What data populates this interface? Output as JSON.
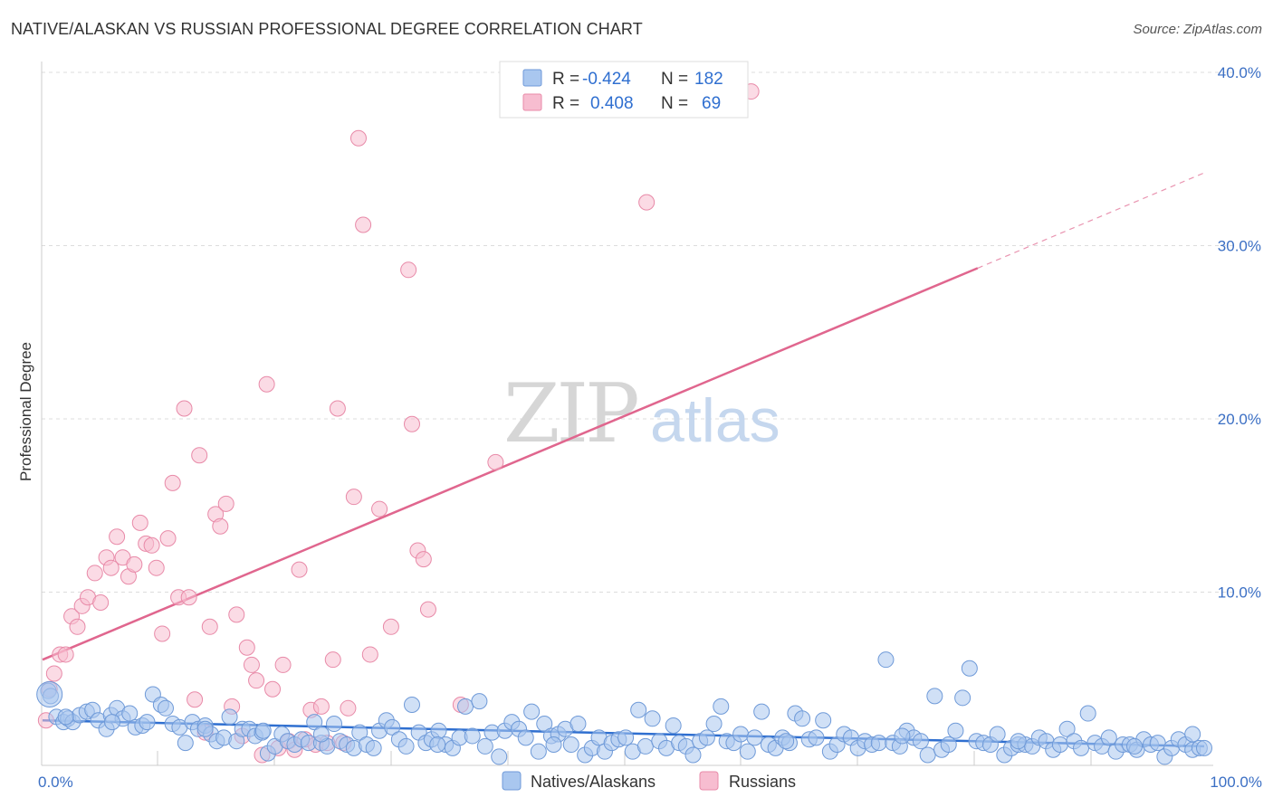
{
  "header": {
    "title": "NATIVE/ALASKAN VS RUSSIAN PROFESSIONAL DEGREE CORRELATION CHART",
    "source": "Source: ZipAtlas.com"
  },
  "watermark": {
    "zip": "ZIP",
    "atlas": "atlas"
  },
  "legend_top": {
    "rows": [
      {
        "r_label": "R =",
        "r_value": "-0.424",
        "n_label": "N =",
        "n_value": "182",
        "color": "#a9c7ef",
        "stroke": "#6f9ad8"
      },
      {
        "r_label": "R =",
        "r_value": "0.408",
        "n_label": "N =",
        "n_value": "69",
        "color": "#f7bdd0",
        "stroke": "#e88aa8"
      }
    ]
  },
  "chart_data": {
    "type": "scatter",
    "title": "NATIVE/ALASKAN VS RUSSIAN PROFESSIONAL DEGREE CORRELATION CHART",
    "xlabel": "",
    "ylabel": "Professional Degree",
    "xlim": [
      0,
      100
    ],
    "ylim": [
      0,
      41.5
    ],
    "x_tick_labels": [
      "0.0%",
      "100.0%"
    ],
    "y_ticks": [
      {
        "value": 10,
        "label": "10.0%"
      },
      {
        "value": 20,
        "label": "20.0%"
      },
      {
        "value": 30,
        "label": "30.0%"
      },
      {
        "value": 40,
        "label": "40.0%"
      }
    ],
    "grid": true,
    "series": [
      {
        "name": "Natives/Alaskans",
        "color": "#a9c7ef",
        "stroke": "#6f9ad8",
        "trend": {
          "x0": 0,
          "y0": 2.6,
          "x1": 100,
          "y1": 1.1,
          "color": "#2f6fd0"
        },
        "points": [
          [
            0.5,
            4.3
          ],
          [
            0.7,
            4.0
          ],
          [
            1.2,
            2.8
          ],
          [
            1.8,
            2.5
          ],
          [
            2.2,
            2.7
          ],
          [
            2.6,
            2.5
          ],
          [
            3.2,
            2.9
          ],
          [
            3.8,
            3.1
          ],
          [
            4.3,
            3.2
          ],
          [
            4.8,
            2.6
          ],
          [
            5.5,
            2.1
          ],
          [
            5.9,
            2.9
          ],
          [
            6.4,
            3.3
          ],
          [
            6.9,
            2.7
          ],
          [
            7.5,
            3.0
          ],
          [
            8.0,
            2.2
          ],
          [
            8.6,
            2.3
          ],
          [
            9.0,
            2.5
          ],
          [
            9.5,
            4.1
          ],
          [
            10.2,
            3.5
          ],
          [
            10.6,
            3.3
          ],
          [
            11.2,
            2.4
          ],
          [
            11.8,
            2.2
          ],
          [
            12.3,
            1.3
          ],
          [
            12.9,
            2.5
          ],
          [
            13.4,
            2.1
          ],
          [
            14.0,
            2.3
          ],
          [
            14.5,
            1.8
          ],
          [
            15.0,
            1.4
          ],
          [
            15.6,
            1.6
          ],
          [
            16.1,
            2.8
          ],
          [
            16.7,
            1.4
          ],
          [
            17.2,
            2.1
          ],
          [
            17.8,
            2.1
          ],
          [
            18.3,
            1.7
          ],
          [
            18.9,
            1.9
          ],
          [
            19.4,
            0.7
          ],
          [
            20.0,
            1.1
          ],
          [
            20.6,
            1.8
          ],
          [
            21.1,
            1.4
          ],
          [
            21.7,
            1.2
          ],
          [
            22.3,
            1.5
          ],
          [
            22.9,
            1.3
          ],
          [
            23.4,
            2.5
          ],
          [
            24.0,
            1.3
          ],
          [
            24.5,
            1.1
          ],
          [
            25.1,
            2.4
          ],
          [
            25.6,
            1.4
          ],
          [
            26.2,
            1.2
          ],
          [
            26.8,
            1.0
          ],
          [
            27.3,
            1.9
          ],
          [
            27.9,
            1.2
          ],
          [
            28.5,
            1.0
          ],
          [
            29.0,
            2.0
          ],
          [
            29.6,
            2.6
          ],
          [
            30.1,
            2.2
          ],
          [
            30.7,
            1.5
          ],
          [
            31.3,
            1.1
          ],
          [
            31.8,
            3.5
          ],
          [
            32.4,
            1.9
          ],
          [
            33.0,
            1.3
          ],
          [
            33.5,
            1.5
          ],
          [
            34.1,
            2.0
          ],
          [
            34.7,
            1.2
          ],
          [
            35.3,
            1.0
          ],
          [
            35.9,
            1.6
          ],
          [
            36.4,
            3.4
          ],
          [
            37.0,
            1.7
          ],
          [
            37.6,
            3.7
          ],
          [
            38.1,
            1.1
          ],
          [
            38.7,
            1.9
          ],
          [
            39.3,
            0.5
          ],
          [
            39.8,
            2.0
          ],
          [
            40.4,
            2.5
          ],
          [
            41.0,
            2.1
          ],
          [
            41.6,
            1.6
          ],
          [
            42.1,
            3.1
          ],
          [
            42.7,
            0.8
          ],
          [
            43.2,
            2.4
          ],
          [
            43.8,
            1.7
          ],
          [
            44.4,
            1.8
          ],
          [
            45.0,
            2.1
          ],
          [
            45.5,
            1.2
          ],
          [
            46.1,
            2.4
          ],
          [
            46.7,
            0.6
          ],
          [
            47.3,
            1.0
          ],
          [
            47.9,
            1.6
          ],
          [
            48.4,
            0.8
          ],
          [
            49.0,
            1.3
          ],
          [
            49.6,
            1.5
          ],
          [
            50.2,
            1.6
          ],
          [
            50.8,
            0.8
          ],
          [
            51.3,
            3.2
          ],
          [
            51.9,
            1.1
          ],
          [
            52.5,
            2.7
          ],
          [
            53.1,
            1.4
          ],
          [
            53.7,
            1.0
          ],
          [
            54.3,
            2.3
          ],
          [
            54.8,
            1.3
          ],
          [
            55.4,
            1.1
          ],
          [
            56.0,
            0.6
          ],
          [
            56.6,
            1.4
          ],
          [
            57.2,
            1.6
          ],
          [
            57.8,
            2.4
          ],
          [
            58.4,
            3.4
          ],
          [
            58.9,
            1.4
          ],
          [
            59.5,
            1.3
          ],
          [
            60.1,
            1.8
          ],
          [
            60.7,
            0.8
          ],
          [
            61.3,
            1.6
          ],
          [
            61.9,
            3.1
          ],
          [
            62.5,
            1.2
          ],
          [
            63.1,
            1.0
          ],
          [
            63.7,
            1.6
          ],
          [
            64.3,
            1.3
          ],
          [
            64.8,
            3.0
          ],
          [
            65.4,
            2.7
          ],
          [
            66.0,
            1.5
          ],
          [
            66.6,
            1.6
          ],
          [
            67.2,
            2.6
          ],
          [
            67.8,
            0.8
          ],
          [
            68.4,
            1.2
          ],
          [
            69.0,
            1.8
          ],
          [
            69.6,
            1.6
          ],
          [
            70.2,
            1.0
          ],
          [
            70.8,
            1.4
          ],
          [
            71.4,
            1.2
          ],
          [
            72.0,
            1.3
          ],
          [
            72.6,
            6.1
          ],
          [
            73.2,
            1.3
          ],
          [
            73.8,
            1.1
          ],
          [
            74.4,
            2.0
          ],
          [
            75.0,
            1.6
          ],
          [
            75.6,
            1.4
          ],
          [
            76.2,
            0.6
          ],
          [
            76.8,
            4.0
          ],
          [
            77.4,
            0.9
          ],
          [
            78.0,
            1.2
          ],
          [
            78.6,
            2.0
          ],
          [
            79.2,
            3.9
          ],
          [
            79.8,
            5.6
          ],
          [
            80.4,
            1.4
          ],
          [
            81.0,
            1.3
          ],
          [
            81.6,
            1.2
          ],
          [
            82.2,
            1.8
          ],
          [
            82.8,
            0.6
          ],
          [
            83.4,
            1.0
          ],
          [
            84.0,
            1.2
          ],
          [
            84.6,
            1.2
          ],
          [
            85.2,
            1.1
          ],
          [
            85.8,
            1.6
          ],
          [
            86.4,
            1.4
          ],
          [
            87.0,
            0.9
          ],
          [
            87.6,
            1.2
          ],
          [
            88.2,
            2.1
          ],
          [
            88.8,
            1.4
          ],
          [
            89.4,
            1.0
          ],
          [
            90.0,
            3.0
          ],
          [
            90.6,
            1.3
          ],
          [
            91.2,
            1.1
          ],
          [
            91.8,
            1.6
          ],
          [
            92.4,
            0.8
          ],
          [
            93.0,
            1.2
          ],
          [
            93.6,
            1.2
          ],
          [
            94.2,
            0.9
          ],
          [
            94.8,
            1.5
          ],
          [
            95.4,
            1.2
          ],
          [
            96.0,
            1.3
          ],
          [
            96.6,
            0.5
          ],
          [
            97.2,
            1.0
          ],
          [
            97.8,
            1.5
          ],
          [
            98.4,
            1.2
          ],
          [
            99.0,
            0.9
          ],
          [
            99.6,
            1.0
          ],
          [
            100.0,
            1.0
          ],
          [
            2.0,
            2.8
          ],
          [
            6.0,
            2.5
          ],
          [
            14.0,
            2.1
          ],
          [
            19.0,
            2.0
          ],
          [
            24.0,
            1.8
          ],
          [
            34.0,
            1.2
          ],
          [
            44.0,
            1.2
          ],
          [
            64.0,
            1.4
          ],
          [
            74.0,
            1.7
          ],
          [
            84.0,
            1.4
          ],
          [
            94.0,
            1.1
          ],
          [
            99.0,
            1.8
          ]
        ]
      },
      {
        "name": "Russians",
        "color": "#f7bdd0",
        "stroke": "#e88aa8",
        "trend": {
          "x0": 0,
          "y0": 6.1,
          "x1": 80.5,
          "y1": 28.7,
          "dash_to": {
            "x": 100,
            "y": 34.2
          },
          "color": "#e0668e"
        },
        "points": [
          [
            0.3,
            2.6
          ],
          [
            0.6,
            4.4
          ],
          [
            1.0,
            5.3
          ],
          [
            1.5,
            6.4
          ],
          [
            2.0,
            6.4
          ],
          [
            2.5,
            8.6
          ],
          [
            3.0,
            8.0
          ],
          [
            3.4,
            9.2
          ],
          [
            3.9,
            9.7
          ],
          [
            4.5,
            11.1
          ],
          [
            5.0,
            9.4
          ],
          [
            5.5,
            12.0
          ],
          [
            5.9,
            11.4
          ],
          [
            6.4,
            13.2
          ],
          [
            6.9,
            12.0
          ],
          [
            7.4,
            10.9
          ],
          [
            7.9,
            11.6
          ],
          [
            8.4,
            14.0
          ],
          [
            8.9,
            12.8
          ],
          [
            9.4,
            12.7
          ],
          [
            9.8,
            11.4
          ],
          [
            10.3,
            7.6
          ],
          [
            10.8,
            13.1
          ],
          [
            11.2,
            16.3
          ],
          [
            11.7,
            9.7
          ],
          [
            12.2,
            20.6
          ],
          [
            12.6,
            9.7
          ],
          [
            13.1,
            3.8
          ],
          [
            13.5,
            17.9
          ],
          [
            14.0,
            1.9
          ],
          [
            14.4,
            8.0
          ],
          [
            14.9,
            14.5
          ],
          [
            15.3,
            13.8
          ],
          [
            15.8,
            15.1
          ],
          [
            16.3,
            3.4
          ],
          [
            16.7,
            8.7
          ],
          [
            17.2,
            1.7
          ],
          [
            17.6,
            6.8
          ],
          [
            18.0,
            5.8
          ],
          [
            18.4,
            4.9
          ],
          [
            18.9,
            0.6
          ],
          [
            19.3,
            22.0
          ],
          [
            19.8,
            4.4
          ],
          [
            20.3,
            1.0
          ],
          [
            20.7,
            5.8
          ],
          [
            21.2,
            1.4
          ],
          [
            21.7,
            0.9
          ],
          [
            22.1,
            11.3
          ],
          [
            22.6,
            1.5
          ],
          [
            23.1,
            3.2
          ],
          [
            23.5,
            1.2
          ],
          [
            24.0,
            3.4
          ],
          [
            24.5,
            1.3
          ],
          [
            25.0,
            6.1
          ],
          [
            25.4,
            20.6
          ],
          [
            25.9,
            1.3
          ],
          [
            26.3,
            3.3
          ],
          [
            26.8,
            15.5
          ],
          [
            27.2,
            36.2
          ],
          [
            27.6,
            31.2
          ],
          [
            28.2,
            6.4
          ],
          [
            29.0,
            14.8
          ],
          [
            30.0,
            8.0
          ],
          [
            31.5,
            28.6
          ],
          [
            31.8,
            19.7
          ],
          [
            32.3,
            12.4
          ],
          [
            32.8,
            11.9
          ],
          [
            33.2,
            9.0
          ],
          [
            36.0,
            3.5
          ],
          [
            39.0,
            17.5
          ],
          [
            52.0,
            32.5
          ],
          [
            61.0,
            38.9
          ]
        ]
      }
    ]
  },
  "bottom_legend": {
    "items": [
      {
        "label": "Natives/Alaskans",
        "color": "#a9c7ef",
        "stroke": "#6f9ad8"
      },
      {
        "label": "Russians",
        "color": "#f7bdd0",
        "stroke": "#e88aa8"
      }
    ]
  }
}
